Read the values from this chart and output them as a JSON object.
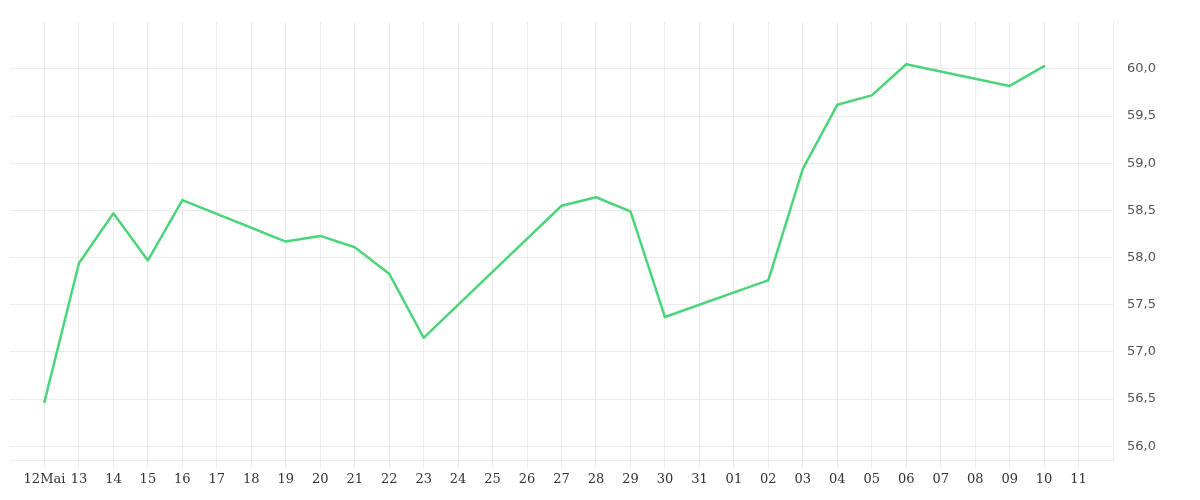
{
  "chart_data": {
    "type": "line",
    "x": [
      "--05-12",
      "--05-13",
      "--05-14",
      "--05-15",
      "--05-16",
      "--05-19",
      "--05-20",
      "--05-21",
      "--05-22",
      "--05-23",
      "--05-27",
      "--05-28",
      "--05-29",
      "--05-30",
      "--06-02",
      "--06-03",
      "--06-04",
      "--06-05",
      "--06-06",
      "--06-09",
      "--06-10"
    ],
    "series": [
      {
        "color": "#4cd47a",
        "values": [
          56.47,
          57.94,
          58.47,
          57.97,
          58.61,
          58.17,
          58.23,
          58.11,
          57.83,
          57.15,
          58.55,
          58.64,
          58.49,
          57.37,
          57.76,
          58.94,
          59.62,
          59.72,
          60.05,
          59.82,
          60.03
        ]
      }
    ],
    "xlim": [
      "--05-11",
      "--06-12"
    ],
    "xticks": [
      {
        "value": "--05-12",
        "label": "12Mai"
      },
      {
        "value": "--05-13",
        "label": "13"
      },
      {
        "value": "--05-14",
        "label": "14"
      },
      {
        "value": "--05-15",
        "label": "15"
      },
      {
        "value": "--05-16",
        "label": "16"
      },
      {
        "value": "--05-17",
        "label": "17"
      },
      {
        "value": "--05-18",
        "label": "18"
      },
      {
        "value": "--05-19",
        "label": "19"
      },
      {
        "value": "--05-20",
        "label": "20"
      },
      {
        "value": "--05-21",
        "label": "21"
      },
      {
        "value": "--05-22",
        "label": "22"
      },
      {
        "value": "--05-23",
        "label": "23"
      },
      {
        "value": "--05-24",
        "label": "24"
      },
      {
        "value": "--05-25",
        "label": "25"
      },
      {
        "value": "--05-26",
        "label": "26"
      },
      {
        "value": "--05-27",
        "label": "27"
      },
      {
        "value": "--05-28",
        "label": "28"
      },
      {
        "value": "--05-29",
        "label": "29"
      },
      {
        "value": "--05-30",
        "label": "30"
      },
      {
        "value": "--05-31",
        "label": "31"
      },
      {
        "value": "--06-01",
        "label": "01"
      },
      {
        "value": "--06-02",
        "label": "02"
      },
      {
        "value": "--06-03",
        "label": "03"
      },
      {
        "value": "--06-04",
        "label": "04"
      },
      {
        "value": "--06-05",
        "label": "05"
      },
      {
        "value": "--06-06",
        "label": "06"
      },
      {
        "value": "--06-07",
        "label": "07"
      },
      {
        "value": "--06-08",
        "label": "08"
      },
      {
        "value": "--06-09",
        "label": "09"
      },
      {
        "value": "--06-10",
        "label": "10"
      },
      {
        "value": "--06-11",
        "label": "11"
      }
    ],
    "ylim": [
      55.85,
      60.5
    ],
    "yticks": [
      {
        "value": 56,
        "label": "56,0"
      },
      {
        "value": 56.5,
        "label": "56,5"
      },
      {
        "value": 57,
        "label": "57,0"
      },
      {
        "value": 57.5,
        "label": "57,5"
      },
      {
        "value": 58,
        "label": "58,0"
      },
      {
        "value": 58.5,
        "label": "58,5"
      },
      {
        "value": 59,
        "label": "59,0"
      },
      {
        "value": 59.5,
        "label": "59,5"
      },
      {
        "value": 60,
        "label": "60,0"
      }
    ],
    "grid": true,
    "legend": false,
    "marker": "none",
    "line_style": "solid"
  }
}
